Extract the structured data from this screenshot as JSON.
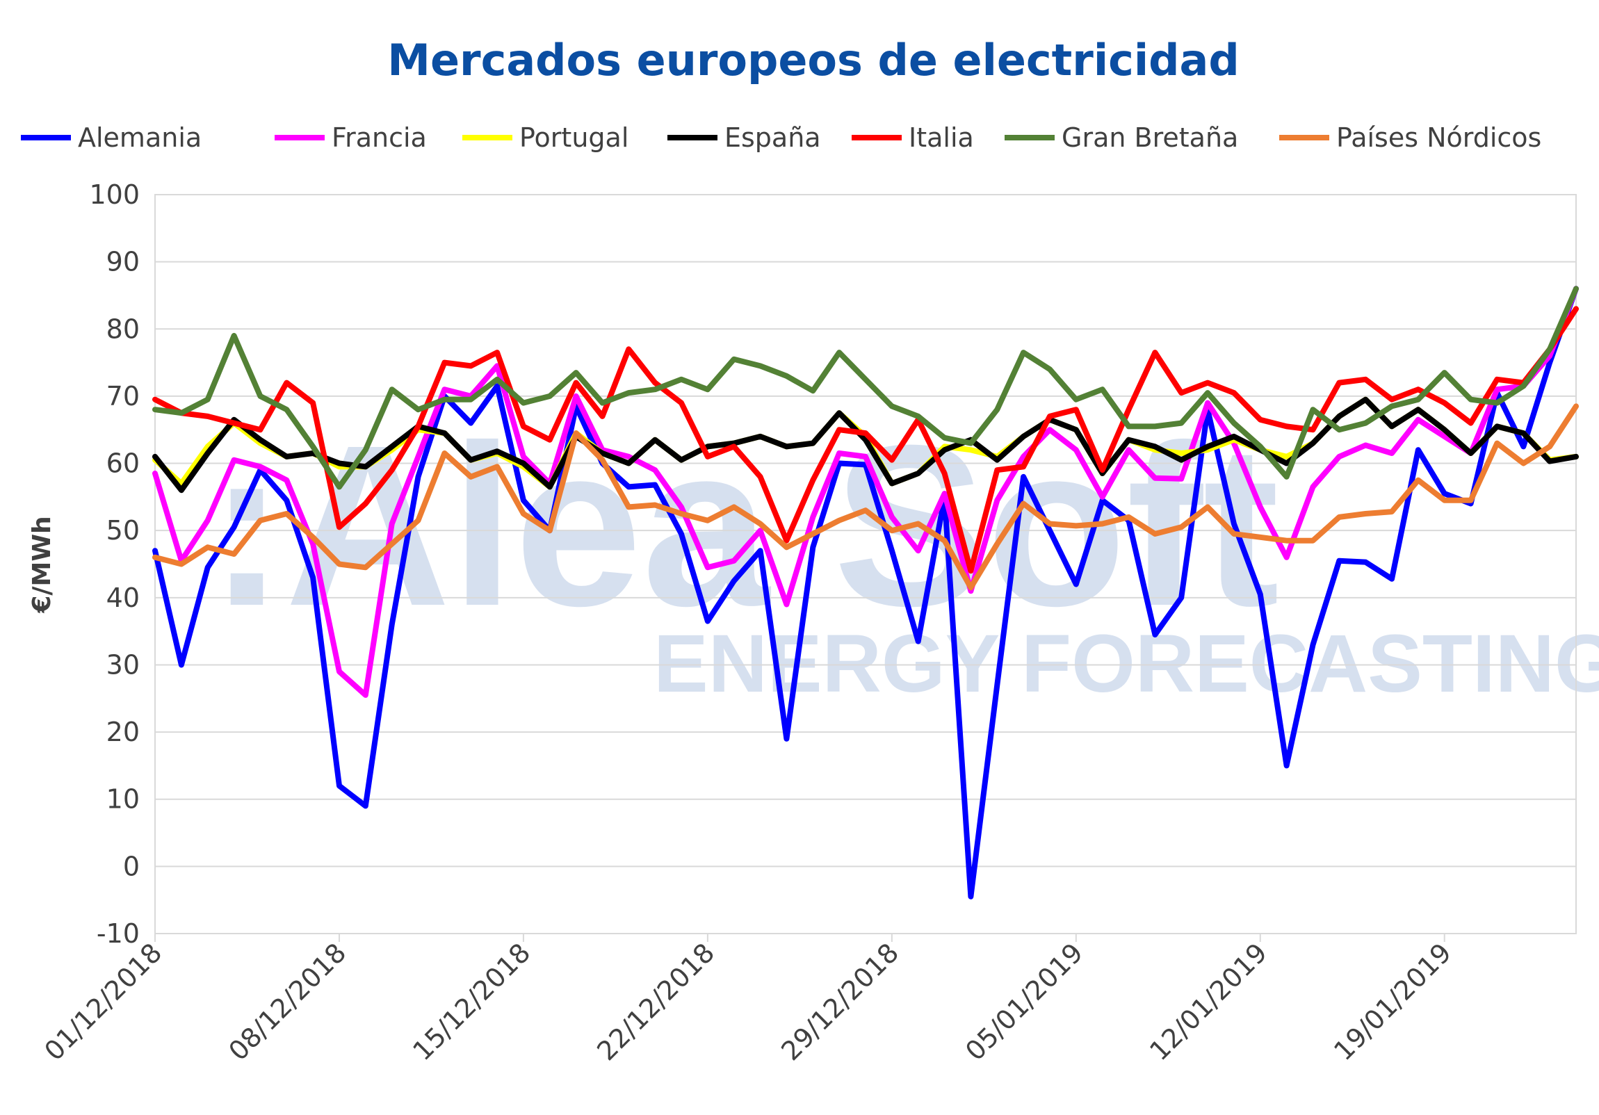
{
  "chart_data": {
    "type": "line",
    "title": "Mercados europeos de electricidad",
    "ylabel": "€/MWh",
    "xlabel": "",
    "ylim": [
      -10,
      100
    ],
    "yticks": [
      "100",
      "90",
      "80",
      "70",
      "60",
      "50",
      "40",
      "30",
      "20",
      "10",
      "0",
      "-10"
    ],
    "xtick_labels": [
      "01/12/2018",
      "08/12/2018",
      "15/12/2018",
      "22/12/2018",
      "29/12/2018",
      "05/01/2019",
      "12/01/2019",
      "19/01/2019"
    ],
    "x_start": "01/12/2018",
    "x_end": "24/01/2019",
    "grid": "horizontal",
    "legend_position": "top",
    "watermark": {
      "line1": ":Alea Soft",
      "line2": "ENERGY FORECASTING"
    },
    "series": [
      {
        "name": "Alemania",
        "color": "#0000ff",
        "values": [
          47,
          30,
          44.5,
          50.5,
          59,
          54.5,
          43,
          12,
          9,
          36,
          58,
          70,
          66,
          71.5,
          54.5,
          50,
          68.5,
          60,
          56.5,
          56.8,
          49.5,
          36.5,
          42.5,
          47,
          19,
          47.5,
          60,
          59.8,
          47,
          33.5,
          55,
          -4.5,
          27,
          58,
          50,
          42,
          54.5,
          51.5,
          34.5,
          40,
          68,
          51,
          40.5,
          15,
          33,
          45.5,
          45.3,
          42.8,
          62,
          55.5,
          54,
          70.5,
          62.5,
          75,
          86
        ]
      },
      {
        "name": "Francia",
        "color": "#ff00ff",
        "values": [
          58.5,
          45.5,
          51.5,
          60.5,
          59.5,
          57.5,
          48,
          29,
          25.5,
          51,
          61,
          71,
          70,
          74.5,
          61,
          57,
          70,
          62,
          61,
          59,
          53.5,
          44.5,
          45.5,
          50,
          39,
          52,
          61.5,
          61,
          52,
          47,
          55.5,
          41,
          54.5,
          61,
          65,
          62,
          55,
          62,
          57.8,
          57.7,
          69,
          63,
          53.5,
          46,
          56.5,
          61,
          62.7,
          61.5,
          66.5,
          64,
          61.5,
          71,
          71.5,
          76,
          86
        ]
      },
      {
        "name": "Portugal",
        "color": "#ffff00",
        "values": [
          60.5,
          57,
          62.5,
          66,
          63,
          61,
          61.5,
          59.5,
          59.5,
          62,
          65,
          64.5,
          60.5,
          61.5,
          59.5,
          56.5,
          64.5,
          61.5,
          60,
          63.5,
          60.5,
          62.5,
          63,
          64,
          62.5,
          63,
          67.5,
          64,
          57,
          58.5,
          62.5,
          62,
          61,
          64,
          66.5,
          65,
          58.5,
          63.5,
          62,
          61.5,
          62,
          63.5,
          62,
          61,
          63,
          67,
          69.5,
          65.5,
          68,
          65,
          61.5,
          65.5,
          64.5,
          60.5,
          61
        ]
      },
      {
        "name": "España",
        "color": "#000000",
        "values": [
          61,
          56,
          61.5,
          66.5,
          63.5,
          61,
          61.5,
          60,
          59.5,
          62.5,
          65.5,
          64.5,
          60.5,
          61.8,
          60,
          56.5,
          64,
          61.5,
          60,
          63.5,
          60.5,
          62.5,
          63,
          64,
          62.5,
          63,
          67.5,
          63.5,
          57,
          58.5,
          62,
          63.5,
          60.5,
          64,
          66.5,
          65,
          58.5,
          63.5,
          62.5,
          60.5,
          62.5,
          64,
          62,
          60,
          63,
          67,
          69.5,
          65.5,
          68,
          65,
          61.5,
          65.5,
          64.5,
          60.3,
          61
        ]
      },
      {
        "name": "Italia",
        "color": "#ff0000",
        "values": [
          69.5,
          67.5,
          67,
          66,
          65,
          72,
          69,
          50.5,
          54,
          59,
          65.5,
          75,
          74.5,
          76.5,
          65.5,
          63.5,
          72,
          67,
          77,
          72,
          69,
          61,
          62.5,
          58,
          48.5,
          57.5,
          65,
          64.5,
          60.5,
          66.5,
          58.5,
          44,
          59,
          59.5,
          67,
          68,
          59,
          68,
          76.5,
          70.5,
          72,
          70.5,
          66.5,
          65.5,
          65,
          72,
          72.5,
          69.5,
          71,
          69,
          66,
          72.5,
          72,
          77,
          83
        ]
      },
      {
        "name": "Gran Bretaña",
        "color": "#538135",
        "values": [
          68,
          67.5,
          69.5,
          79,
          70,
          68,
          62.5,
          56.5,
          62,
          71,
          68,
          69.5,
          69.5,
          72.5,
          69,
          70,
          73.5,
          69,
          70.5,
          71,
          72.5,
          71,
          75.5,
          74.5,
          73,
          70.8,
          76.5,
          72.5,
          68.5,
          67,
          63.8,
          63,
          68,
          76.5,
          74,
          69.5,
          71,
          65.5,
          65.5,
          66,
          70.5,
          66,
          62.5,
          58,
          68,
          65,
          66,
          68.5,
          69.5,
          73.5,
          69.5,
          69,
          71.5,
          77,
          86
        ]
      },
      {
        "name": "Países Nórdicos",
        "color": "#ed7d31",
        "values": [
          46,
          45,
          47.5,
          46.5,
          51.5,
          52.5,
          49,
          45,
          44.5,
          48,
          51.5,
          61.5,
          58,
          59.5,
          52.5,
          50,
          64.5,
          60.5,
          53.5,
          53.8,
          52.5,
          51.5,
          53.5,
          51,
          47.5,
          49.5,
          51.5,
          53,
          50,
          51,
          48.5,
          41.5,
          48,
          54,
          51,
          50.7,
          51,
          52,
          49.5,
          50.5,
          53.5,
          49.5,
          49,
          48.5,
          48.5,
          52,
          52.5,
          52.8,
          57.5,
          54.5,
          54.5,
          63,
          60,
          62.5,
          68.5
        ]
      }
    ]
  }
}
